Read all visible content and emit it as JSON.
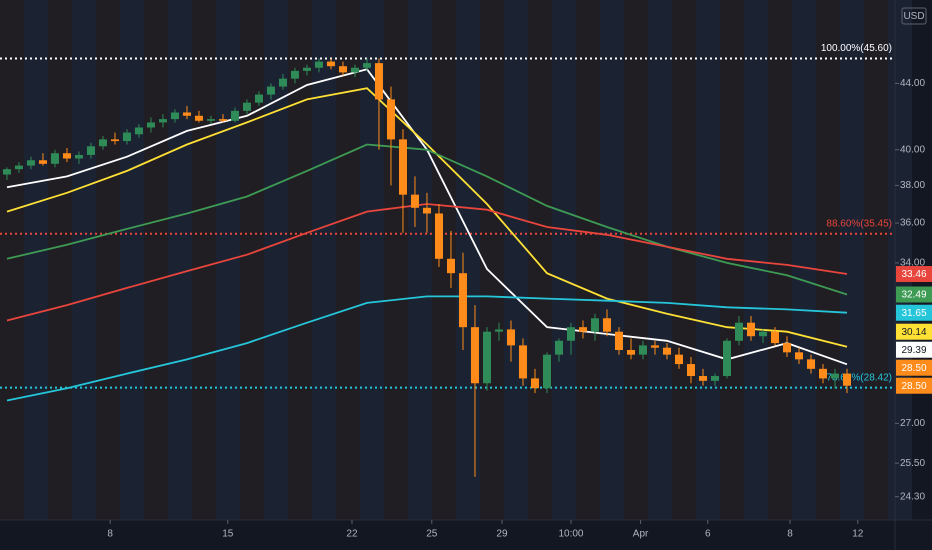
{
  "chart_data": {
    "type": "candlestick",
    "currency": "USD",
    "log_scale": true,
    "up_color": "#2f8b57",
    "down_color": "#ff8c1a",
    "x": [
      0,
      1,
      2,
      3,
      4,
      5,
      6,
      7,
      8,
      9,
      10,
      11,
      12,
      13,
      14,
      15,
      16,
      17,
      18,
      19,
      20,
      21,
      22,
      23,
      24,
      25,
      26,
      27,
      28,
      29,
      30,
      31,
      32,
      33,
      34,
      35,
      36,
      37,
      38,
      39,
      40,
      41,
      42,
      43,
      44,
      45,
      46,
      47,
      48,
      49,
      50,
      51,
      52,
      53,
      54,
      55,
      56,
      57,
      58,
      59,
      60,
      61,
      62,
      63,
      64,
      65,
      66,
      67,
      68,
      69,
      70
    ],
    "open": [
      38.6,
      38.9,
      39.1,
      39.4,
      39.2,
      39.8,
      39.5,
      39.7,
      40.2,
      40.6,
      40.5,
      40.9,
      41.3,
      41.6,
      41.8,
      42.2,
      42.0,
      41.7,
      41.8,
      41.7,
      42.3,
      42.8,
      43.3,
      43.8,
      44.3,
      44.8,
      45.0,
      45.4,
      45.1,
      44.7,
      45.0,
      45.3,
      43.0,
      40.6,
      37.5,
      36.8,
      36.5,
      34.2,
      33.5,
      31.0,
      28.6,
      30.8,
      30.9,
      30.2,
      28.8,
      28.4,
      29.8,
      30.4,
      31.0,
      30.8,
      31.4,
      30.8,
      30.0,
      29.8,
      30.2,
      30.1,
      29.8,
      29.4,
      28.9,
      28.7,
      28.9,
      30.4,
      31.2,
      30.6,
      30.8,
      30.3,
      29.9,
      29.6,
      29.2,
      28.8,
      29.0
    ],
    "high": [
      39.0,
      39.3,
      39.6,
      39.8,
      40.0,
      40.1,
      39.9,
      40.4,
      40.8,
      41.0,
      41.2,
      41.5,
      41.9,
      42.1,
      42.4,
      42.6,
      42.3,
      42.0,
      42.1,
      42.5,
      43.0,
      43.5,
      44.0,
      44.6,
      45.0,
      45.2,
      45.6,
      45.6,
      45.4,
      45.2,
      45.6,
      45.6,
      43.8,
      41.2,
      38.5,
      37.6,
      37.0,
      35.6,
      34.5,
      32.0,
      31.0,
      31.2,
      31.3,
      30.5,
      29.2,
      29.9,
      30.5,
      31.2,
      31.3,
      31.6,
      31.8,
      31.0,
      30.5,
      30.4,
      30.4,
      30.3,
      30.1,
      29.7,
      29.2,
      29.0,
      30.5,
      31.5,
      31.5,
      30.9,
      31.0,
      30.6,
      30.1,
      29.8,
      29.4,
      29.2,
      29.2
    ],
    "low": [
      38.3,
      38.7,
      38.9,
      39.1,
      39.0,
      39.3,
      39.2,
      39.5,
      40.0,
      40.3,
      40.3,
      40.7,
      41.0,
      41.3,
      41.6,
      41.8,
      41.6,
      41.5,
      41.6,
      41.6,
      42.1,
      42.6,
      43.0,
      43.6,
      44.0,
      44.5,
      44.7,
      44.9,
      44.5,
      44.4,
      44.8,
      40.0,
      38.0,
      35.5,
      35.8,
      35.5,
      33.8,
      32.8,
      30.0,
      25.0,
      28.3,
      30.4,
      29.5,
      28.5,
      28.2,
      28.2,
      29.5,
      29.8,
      30.5,
      30.4,
      30.6,
      29.8,
      29.6,
      29.6,
      29.8,
      29.6,
      29.2,
      28.6,
      28.5,
      28.5,
      28.8,
      30.2,
      30.4,
      30.3,
      30.2,
      29.7,
      29.4,
      29.0,
      28.6,
      28.4,
      28.2
    ],
    "close": [
      38.9,
      39.1,
      39.4,
      39.2,
      39.8,
      39.5,
      39.7,
      40.2,
      40.6,
      40.5,
      41.0,
      41.3,
      41.6,
      41.8,
      42.2,
      42.0,
      41.7,
      41.8,
      41.7,
      42.3,
      42.8,
      43.3,
      43.8,
      44.3,
      44.8,
      45.0,
      45.4,
      45.1,
      44.7,
      45.0,
      45.3,
      43.0,
      40.6,
      37.5,
      36.8,
      36.5,
      34.2,
      33.5,
      31.0,
      28.6,
      30.8,
      30.9,
      30.2,
      28.8,
      28.4,
      29.8,
      30.4,
      31.0,
      30.8,
      31.4,
      30.8,
      30.0,
      29.8,
      30.2,
      30.1,
      29.8,
      29.4,
      28.9,
      28.7,
      28.9,
      30.4,
      31.2,
      30.6,
      30.8,
      30.3,
      29.9,
      29.6,
      29.2,
      28.8,
      29.0,
      28.5
    ],
    "series": [
      {
        "color": "#ffffff",
        "x": [
          0,
          5,
          10,
          15,
          20,
          25,
          30,
          35,
          40,
          45,
          50,
          55,
          60,
          65,
          70
        ],
        "values": [
          37.9,
          38.5,
          39.6,
          41.1,
          42.0,
          43.9,
          44.9,
          40.0,
          33.7,
          31.0,
          30.7,
          30.4,
          29.6,
          30.3,
          29.39
        ]
      },
      {
        "color": "#ffe135",
        "x": [
          0,
          5,
          10,
          15,
          20,
          25,
          30,
          35,
          40,
          45,
          50,
          55,
          60,
          65,
          70
        ],
        "values": [
          36.6,
          37.6,
          38.8,
          40.3,
          41.6,
          43.0,
          43.7,
          40.3,
          37.0,
          33.5,
          32.3,
          31.6,
          31.0,
          30.8,
          30.14
        ]
      },
      {
        "color": "#3e9b54",
        "x": [
          0,
          5,
          10,
          15,
          20,
          25,
          30,
          35,
          40,
          45,
          50,
          55,
          60,
          65,
          70
        ],
        "values": [
          34.2,
          34.9,
          35.7,
          36.5,
          37.4,
          38.8,
          40.3,
          40.0,
          38.5,
          36.9,
          35.8,
          34.8,
          34.0,
          33.4,
          32.49
        ]
      },
      {
        "color": "#e8453c",
        "x": [
          0,
          5,
          10,
          15,
          20,
          25,
          30,
          35,
          40,
          45,
          50,
          55,
          60,
          65,
          70
        ],
        "values": [
          31.3,
          32.0,
          32.8,
          33.6,
          34.4,
          35.5,
          36.6,
          37.0,
          36.7,
          35.8,
          35.4,
          34.8,
          34.2,
          33.9,
          33.46
        ]
      },
      {
        "color": "#26c6da",
        "x": [
          0,
          5,
          10,
          15,
          20,
          25,
          30,
          35,
          40,
          45,
          50,
          55,
          60,
          65,
          70
        ],
        "values": [
          27.9,
          28.4,
          29.0,
          29.6,
          30.3,
          31.2,
          32.1,
          32.4,
          32.4,
          32.3,
          32.2,
          32.1,
          31.9,
          31.8,
          31.65
        ]
      }
    ],
    "fib_levels": [
      {
        "value": 45.6,
        "label": "100.00%(45.60)",
        "color": "#ffffff"
      },
      {
        "value": 35.45,
        "label": "88.60%(35.45)",
        "color": "#e8453c"
      },
      {
        "value": 28.42,
        "label": "78.60%(28.42)",
        "color": "#26c6da"
      }
    ],
    "price_tags": [
      {
        "value": 33.46,
        "label": "33.46",
        "color": "#e8453c",
        "text_color": "#ffffff"
      },
      {
        "value": 32.49,
        "label": "32.49",
        "color": "#3e9b54",
        "text_color": "#ffffff"
      },
      {
        "value": 31.65,
        "label": "31.65",
        "color": "#26c6da",
        "text_color": "#ffffff"
      },
      {
        "value": 30.14,
        "label": "30.14",
        "color": "#ffe135",
        "text_color": "#131722"
      },
      {
        "value": 29.39,
        "label": "29.39",
        "color": "#ffffff",
        "text_color": "#131722"
      },
      {
        "value": 28.5,
        "label": "28.50",
        "color": "#ff8c1a",
        "text_color": "#ffffff"
      },
      {
        "value": 28.5,
        "label": "28.50",
        "color": "#ff8c1a",
        "text_color": "#ffffff"
      }
    ],
    "xlim": [
      -0.58,
      74
    ],
    "ylim": [
      23.5,
      49.6
    ],
    "yticks": [
      {
        "value": 44,
        "label": "44.00"
      },
      {
        "value": 40,
        "label": "40.00"
      },
      {
        "value": 38,
        "label": "38.00"
      },
      {
        "value": 36,
        "label": "36.00"
      },
      {
        "value": 34,
        "label": "34.00"
      },
      {
        "value": 27,
        "label": "27.00"
      },
      {
        "value": 25.5,
        "label": "25.50"
      },
      {
        "value": 24.3,
        "label": "24.30"
      }
    ],
    "xticks": [
      {
        "value": 8.6,
        "label": "8"
      },
      {
        "value": 18.4,
        "label": "15"
      },
      {
        "value": 28.75,
        "label": "22"
      },
      {
        "value": 35.4,
        "label": "25"
      },
      {
        "value": 41.25,
        "label": "29"
      },
      {
        "value": 47,
        "label": "10:00"
      },
      {
        "value": 52.8,
        "label": "Apr"
      },
      {
        "value": 58.4,
        "label": "6"
      },
      {
        "value": 65.25,
        "label": "8"
      },
      {
        "value": 70.9,
        "label": "12"
      }
    ]
  }
}
